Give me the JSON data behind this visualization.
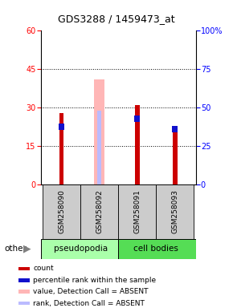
{
  "title": "GDS3288 / 1459473_at",
  "samples": [
    "GSM258090",
    "GSM258092",
    "GSM258091",
    "GSM258093"
  ],
  "group_labels": [
    "pseudopodia",
    "cell bodies"
  ],
  "red_bars": [
    28,
    0,
    31,
    22
  ],
  "blue_bars": [
    24,
    0,
    27,
    23
  ],
  "pink_bars": [
    0,
    41,
    0,
    0
  ],
  "lavender_bars": [
    0,
    29,
    0,
    0
  ],
  "ylim_left": [
    0,
    60
  ],
  "ylim_right": [
    0,
    100
  ],
  "yticks_left": [
    0,
    15,
    30,
    45,
    60
  ],
  "yticks_right": [
    0,
    25,
    50,
    75,
    100
  ],
  "ytick_labels_right": [
    "0",
    "25",
    "50",
    "75",
    "100%"
  ],
  "grid_lines": [
    15,
    30,
    45
  ],
  "red_color": "#cc0000",
  "blue_color": "#1111cc",
  "pink_color": "#ffb6b6",
  "lavender_color": "#bbbbff",
  "group_bg_light_green": "#aaffaa",
  "group_bg_green": "#55dd55",
  "sample_bg": "#cccccc",
  "legend_items": [
    {
      "label": "count",
      "color": "#cc0000"
    },
    {
      "label": "percentile rank within the sample",
      "color": "#1111cc"
    },
    {
      "label": "value, Detection Call = ABSENT",
      "color": "#ffb6b6"
    },
    {
      "label": "rank, Detection Call = ABSENT",
      "color": "#bbbbff"
    }
  ],
  "red_bar_width": 0.12,
  "blue_bar_width": 0.1,
  "pink_bar_width": 0.28,
  "lavender_bar_width": 0.1
}
